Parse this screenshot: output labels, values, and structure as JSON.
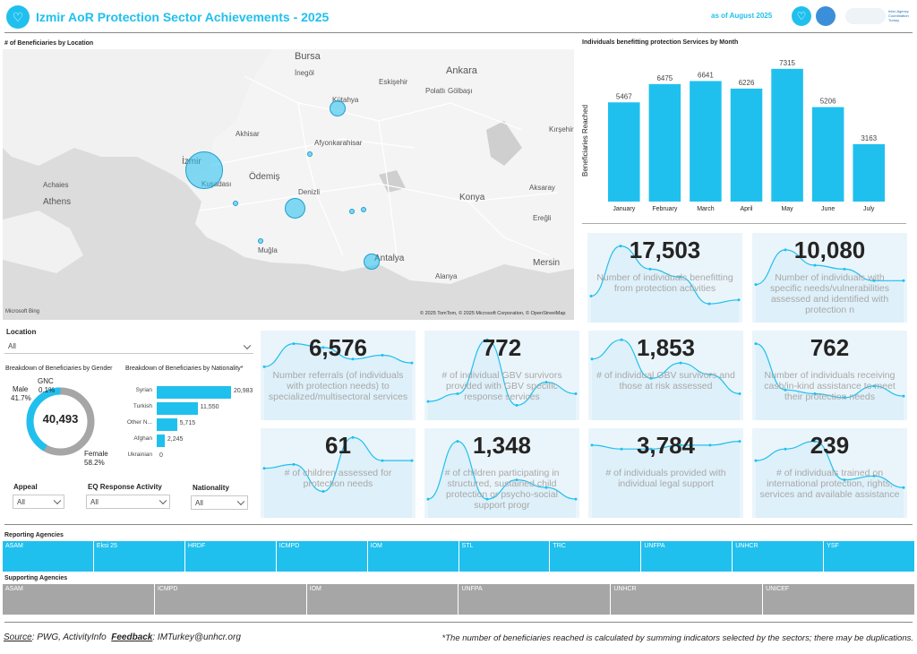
{
  "header": {
    "title": "Izmir AoR Protection Sector Achievements - 2025",
    "as_of": "as of August 2025",
    "partner_text": "Inter-Agency Coordination Turkey"
  },
  "map": {
    "title": "# of Beneficiaries by Location",
    "attribution": "© 2025 TomTom, © 2025 Microsoft Corporation, © OpenStreetMap",
    "provider": "Microsoft Bing",
    "cities": [
      "Bursa",
      "Ankara",
      "Eskişehir",
      "Kütahya",
      "Polatlı",
      "Gölbaşı",
      "İnegöl",
      "Akhisar",
      "Afyonkarahisar",
      "Kırşehir",
      "İzmir",
      "Achaies",
      "Athens",
      "Ödemiş",
      "Konya",
      "Denizli",
      "Aksaray",
      "Ereğli",
      "Muğla",
      "Antalya",
      "Mersin",
      "Alanya",
      "Kuşadası"
    ]
  },
  "monthly": {
    "title": "Individuals benefitting protection Services by Month",
    "ylabel": "Beneficiaries Reached"
  },
  "chart_data": {
    "type": "bar",
    "categories": [
      "January",
      "February",
      "March",
      "April",
      "May",
      "June",
      "July"
    ],
    "values": [
      5467,
      6475,
      6641,
      6226,
      7315,
      5206,
      3163
    ],
    "xlabel": "",
    "ylabel": "Beneficiaries Reached",
    "ylim": [
      0,
      7800
    ],
    "color": "#20c0ee"
  },
  "kpis": [
    {
      "value": "17,503",
      "label": "Number of individuals benefitting from protection activities"
    },
    {
      "value": "10,080",
      "label": "Number of individuals with specific needs/vulnerabilities assessed and identified with protection n"
    },
    {
      "value": "6,576",
      "label": "Number referrals (of individuals with protection needs) to specialized/multisectoral services"
    },
    {
      "value": "772",
      "label": "# of individual GBV survivors provided with GBV specific response services"
    },
    {
      "value": "1,853",
      "label": "# of individual GBV survivors and those at risk assessed"
    },
    {
      "value": "762",
      "label": "Number of individuals receiving cash/in-kind assistance to meet their protection needs"
    },
    {
      "value": "61",
      "label": "# of children assessed for protection needs"
    },
    {
      "value": "1,348",
      "label": "# of children participating in structured, sustained child protection or psycho-social support progr"
    },
    {
      "value": "3,784",
      "label": "# of individuals provided with individual legal support"
    },
    {
      "value": "239",
      "label": "# of individuals trained on international protection, rights, services and available assistance"
    }
  ],
  "location": {
    "label": "Location",
    "value": "All"
  },
  "gender": {
    "title": "Breakdown of Beneficiaries by Gender",
    "total": "40,493",
    "male_label": "Male",
    "male_pct": "41.7%",
    "female_label": "Female",
    "female_pct": "58.2%",
    "gnc_label": "GNC",
    "gnc_pct": "0.1%",
    "male_fraction": 0.417
  },
  "nationality": {
    "title": "Breakdown of Beneficiaries by Nationality*",
    "items": [
      {
        "name": "Syrian",
        "value": 20983,
        "text": "20,983"
      },
      {
        "name": "Turkish",
        "value": 11550,
        "text": "11,550"
      },
      {
        "name": "Other N...",
        "value": 5715,
        "text": "5,715"
      },
      {
        "name": "Afghan",
        "value": 2245,
        "text": "2,245"
      },
      {
        "name": "Ukrainian",
        "value": 0,
        "text": "0"
      }
    ]
  },
  "filters": {
    "appeal": {
      "label": "Appeal",
      "value": "All"
    },
    "eq": {
      "label": "EQ Response Activity",
      "value": "All"
    },
    "nationality": {
      "label": "Nationality",
      "value": "All"
    }
  },
  "reporting": {
    "title": "Reporting Agencies",
    "items": [
      "ASAM",
      "Eksi 25",
      "HRDF",
      "ICMPD",
      "IOM",
      "STL",
      "TRC",
      "UNFPA",
      "UNHCR",
      "YSF"
    ],
    "color": "#20c0ee"
  },
  "supporting": {
    "title": "Supporting Agencies",
    "items": [
      "ASAM",
      "ICMPD",
      "IOM",
      "UNFPA",
      "UNHCR",
      "UNICEF"
    ],
    "color": "#a6a6a6"
  },
  "footer": {
    "source_label": "Source",
    "source_text": ": PWG, ActivityInfo",
    "feedback_label": "Feedback",
    "feedback_text": ": IMTurkey@unhcr.org",
    "note": "*The number of beneficiaries reached is calculated by summing indicators selected by the sectors; there may be duplications."
  }
}
